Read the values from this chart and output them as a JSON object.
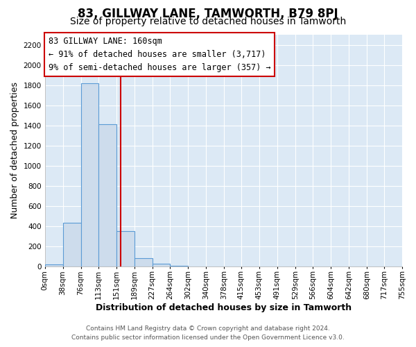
{
  "title": "83, GILLWAY LANE, TAMWORTH, B79 8PJ",
  "subtitle": "Size of property relative to detached houses in Tamworth",
  "xlabel": "Distribution of detached houses by size in Tamworth",
  "ylabel": "Number of detached properties",
  "bin_edges": [
    0,
    38,
    76,
    113,
    151,
    189,
    227,
    264,
    302,
    340,
    378,
    415,
    453,
    491,
    529,
    566,
    604,
    642,
    680,
    717,
    755
  ],
  "bin_heights": [
    20,
    430,
    1820,
    1410,
    350,
    80,
    25,
    5,
    0,
    0,
    0,
    0,
    0,
    0,
    0,
    0,
    0,
    0,
    0,
    0
  ],
  "bar_color": "#cddcec",
  "bar_edge_color": "#5b9bd5",
  "property_size": 160,
  "red_line_color": "#cc0000",
  "annotation_box_edge_color": "#cc0000",
  "annotation_line1": "83 GILLWAY LANE: 160sqm",
  "annotation_line2": "← 91% of detached houses are smaller (3,717)",
  "annotation_line3": "9% of semi-detached houses are larger (357) →",
  "ylim": [
    0,
    2300
  ],
  "yticks": [
    0,
    200,
    400,
    600,
    800,
    1000,
    1200,
    1400,
    1600,
    1800,
    2000,
    2200
  ],
  "xtick_labels": [
    "0sqm",
    "38sqm",
    "76sqm",
    "113sqm",
    "151sqm",
    "189sqm",
    "227sqm",
    "264sqm",
    "302sqm",
    "340sqm",
    "378sqm",
    "415sqm",
    "453sqm",
    "491sqm",
    "529sqm",
    "566sqm",
    "604sqm",
    "642sqm",
    "680sqm",
    "717sqm",
    "755sqm"
  ],
  "footer_line1": "Contains HM Land Registry data © Crown copyright and database right 2024.",
  "footer_line2": "Contains public sector information licensed under the Open Government Licence v3.0.",
  "background_color": "#ffffff",
  "plot_background_color": "#dce9f5",
  "grid_color": "#ffffff",
  "title_fontsize": 12,
  "subtitle_fontsize": 10,
  "axis_label_fontsize": 9,
  "tick_fontsize": 7.5,
  "footer_fontsize": 6.5
}
